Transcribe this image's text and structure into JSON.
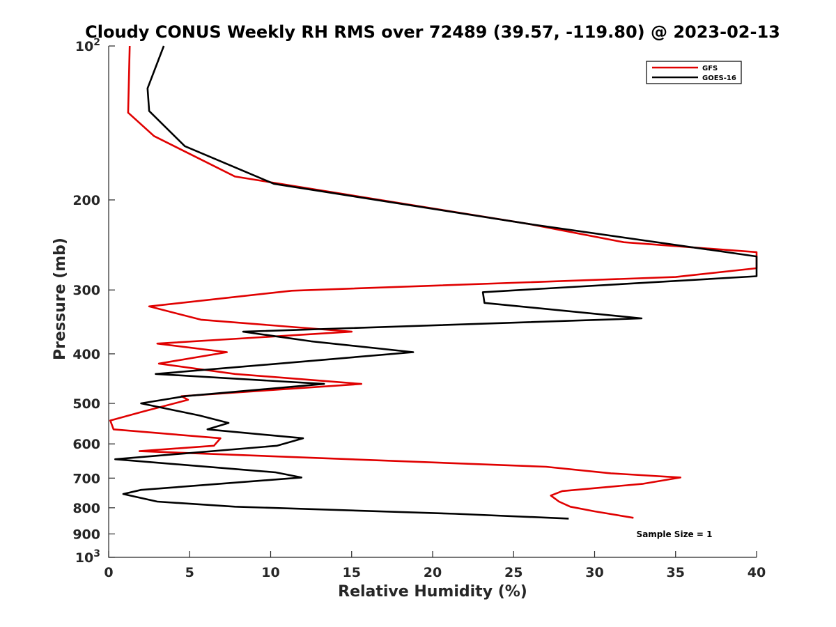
{
  "chart_data": {
    "type": "line",
    "title": "Cloudy CONUS Weekly RH RMS over 72489 (39.57, -119.80) @ 2023-02-13",
    "xlabel": "Relative Humidity (%)",
    "ylabel": "Pressure (mb)",
    "xlim": [
      0,
      40
    ],
    "ylim": [
      100,
      1000
    ],
    "yscale": "log",
    "y_reversed": true,
    "x_ticks": [
      "0",
      "5",
      "10",
      "15",
      "20",
      "25",
      "30",
      "35",
      "40"
    ],
    "y_ticks": [
      {
        "value": 100,
        "label": "10",
        "exp": "2"
      },
      {
        "value": 200,
        "label": "200",
        "exp": ""
      },
      {
        "value": 300,
        "label": "300",
        "exp": ""
      },
      {
        "value": 400,
        "label": "400",
        "exp": ""
      },
      {
        "value": 500,
        "label": "500",
        "exp": ""
      },
      {
        "value": 600,
        "label": "600",
        "exp": ""
      },
      {
        "value": 700,
        "label": "700",
        "exp": ""
      },
      {
        "value": 800,
        "label": "800",
        "exp": ""
      },
      {
        "value": 900,
        "label": "900",
        "exp": ""
      },
      {
        "value": 1000,
        "label": "10",
        "exp": "3"
      }
    ],
    "grid": false,
    "legend_position": "top-right",
    "annotation": "Sample Size = 1",
    "series": [
      {
        "name": "GFS",
        "color": "#e00000",
        "points": [
          [
            1.3,
            100
          ],
          [
            1.2,
            135
          ],
          [
            2.8,
            150
          ],
          [
            7.8,
            180
          ],
          [
            26,
            223
          ],
          [
            31.8,
            242
          ],
          [
            40,
            253
          ],
          [
            40,
            272
          ],
          [
            35,
            283
          ],
          [
            11.3,
            301
          ],
          [
            2.5,
            323
          ],
          [
            5.7,
            343
          ],
          [
            15,
            362
          ],
          [
            3,
            382
          ],
          [
            7.3,
            397
          ],
          [
            3.1,
            418
          ],
          [
            7.8,
            438
          ],
          [
            15.6,
            458
          ],
          [
            4.5,
            484
          ],
          [
            4.9,
            492
          ],
          [
            2.2,
            518
          ],
          [
            0.1,
            540
          ],
          [
            0.3,
            562
          ],
          [
            6.9,
            585
          ],
          [
            6.5,
            605
          ],
          [
            1.9,
            620
          ],
          [
            27,
            665
          ],
          [
            31,
            685
          ],
          [
            35.3,
            698
          ],
          [
            33,
            718
          ],
          [
            28,
            742
          ],
          [
            27.3,
            757
          ],
          [
            27.8,
            778
          ],
          [
            28.5,
            796
          ],
          [
            30,
            813
          ],
          [
            32.4,
            837
          ]
        ]
      },
      {
        "name": "GOES-16",
        "color": "#000000",
        "points": [
          [
            3.4,
            100
          ],
          [
            2.4,
            121
          ],
          [
            2.5,
            134
          ],
          [
            4.7,
            157
          ],
          [
            10.2,
            186
          ],
          [
            26,
            223
          ],
          [
            40,
            258
          ],
          [
            40,
            282
          ],
          [
            23.1,
            303
          ],
          [
            23.2,
            318
          ],
          [
            32.9,
            341
          ],
          [
            8.3,
            362
          ],
          [
            12.5,
            378
          ],
          [
            18.8,
            397
          ],
          [
            10.5,
            418
          ],
          [
            2.9,
            438
          ],
          [
            13.3,
            458
          ],
          [
            4.7,
            484
          ],
          [
            2,
            500
          ],
          [
            5.6,
            528
          ],
          [
            7.4,
            546
          ],
          [
            6.1,
            562
          ],
          [
            12,
            585
          ],
          [
            10.4,
            605
          ],
          [
            0.4,
            643
          ],
          [
            10.3,
            682
          ],
          [
            11.9,
            698
          ],
          [
            2,
            738
          ],
          [
            0.9,
            752
          ],
          [
            3,
            778
          ],
          [
            7.8,
            796
          ],
          [
            21.4,
            822
          ],
          [
            28.4,
            840
          ]
        ]
      }
    ]
  }
}
